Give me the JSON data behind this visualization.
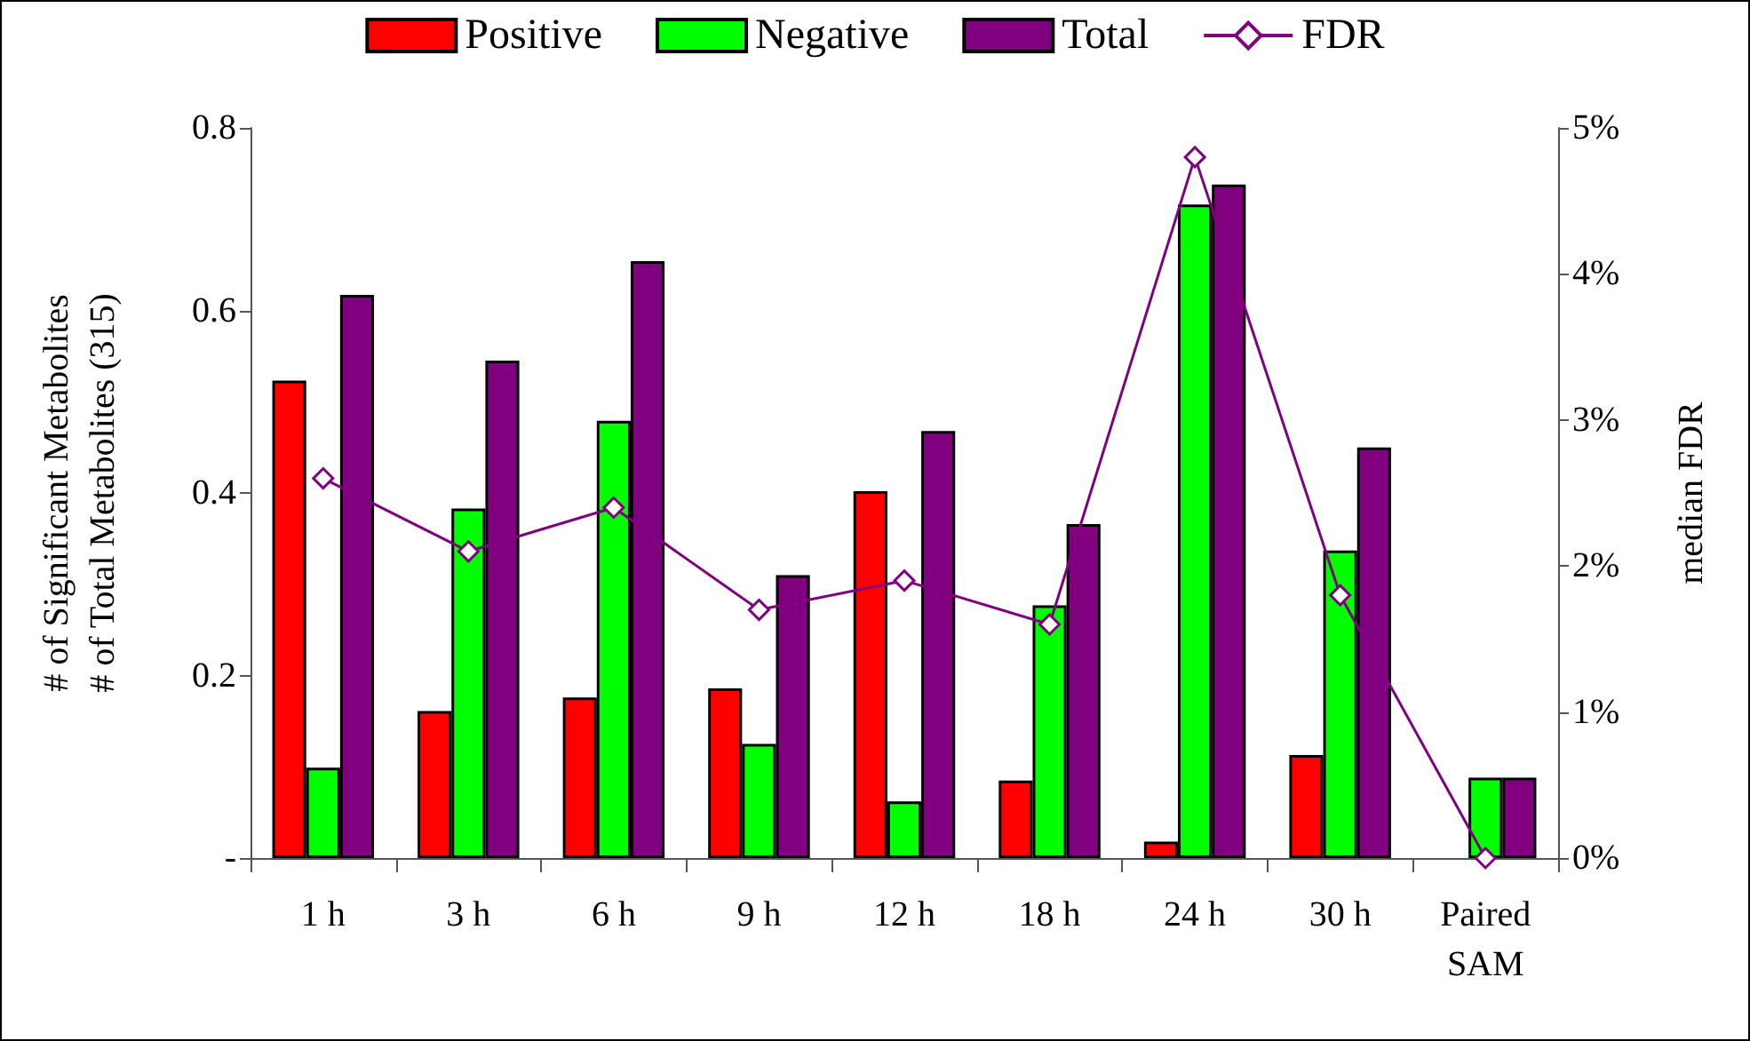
{
  "chart_data": {
    "type": "bar",
    "categories": [
      "1 h",
      "3 h",
      "6 h",
      "9 h",
      "12 h",
      "18 h",
      "24 h",
      "30 h",
      "Paired\nSAM"
    ],
    "series": [
      {
        "name": "Positive",
        "color": "#ff0000",
        "values": [
          0.523,
          0.161,
          0.176,
          0.186,
          0.402,
          0.085,
          0.018,
          0.113,
          null
        ]
      },
      {
        "name": "Negative",
        "color": "#00ff00",
        "values": [
          0.099,
          0.383,
          0.479,
          0.125,
          0.062,
          0.277,
          0.716,
          0.337,
          0.088
        ]
      },
      {
        "name": "Total",
        "color": "#800080",
        "values": [
          0.617,
          0.545,
          0.654,
          0.31,
          0.468,
          0.366,
          0.738,
          0.45,
          0.088
        ]
      },
      {
        "name": "FDR",
        "type": "line",
        "axis": "y2",
        "color": "#800080",
        "marker": "diamond",
        "values": [
          2.6,
          2.1,
          2.4,
          1.7,
          1.9,
          1.6,
          4.8,
          1.8,
          0
        ]
      }
    ],
    "ylabel": "# of Significant Metabolites\n# of Total Metabolites (315)",
    "y2label": "median FDR",
    "ylim": [
      0,
      0.8
    ],
    "yticks": [
      {
        "value": 0,
        "label": "-"
      },
      0.2,
      0.4,
      0.6,
      0.8
    ],
    "y2lim": [
      0,
      5
    ],
    "y2ticks": [
      {
        "value": 0,
        "label": "0%"
      },
      {
        "value": 1,
        "label": "1%"
      },
      {
        "value": 2,
        "label": "2%"
      },
      {
        "value": 3,
        "label": "3%"
      },
      {
        "value": 4,
        "label": "4%"
      },
      {
        "value": 5,
        "label": "5%"
      }
    ],
    "legend": "top",
    "grid": false
  }
}
